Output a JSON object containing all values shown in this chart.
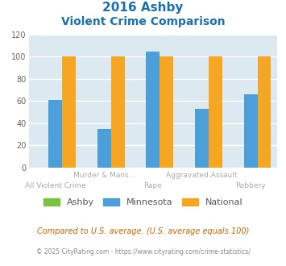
{
  "title_line1": "2016 Ashby",
  "title_line2": "Violent Crime Comparison",
  "title_color": "#1a6faf",
  "categories": [
    "All Violent Crime",
    "Murder & Mans...",
    "Rape",
    "Aggravated Assault",
    "Robbery"
  ],
  "ashby_values": [
    0,
    0,
    0,
    0,
    0
  ],
  "minnesota_values": [
    61,
    35,
    105,
    53,
    66
  ],
  "national_values": [
    100,
    100,
    100,
    100,
    100
  ],
  "ashby_color": "#7bc142",
  "minnesota_color": "#4d9fda",
  "national_color": "#f5a623",
  "ylim": [
    0,
    120
  ],
  "yticks": [
    0,
    20,
    40,
    60,
    80,
    100,
    120
  ],
  "bar_width": 0.28,
  "bg_color": "#dce9f0",
  "grid_color": "#ffffff",
  "legend_labels": [
    "Ashby",
    "Minnesota",
    "National"
  ],
  "footnote1": "Compared to U.S. average. (U.S. average equals 100)",
  "footnote2": "© 2025 CityRating.com - https://www.cityrating.com/crime-statistics/",
  "footnote1_color": "#cc6600",
  "footnote2_color": "#888888",
  "x_label_color": "#aaaaaa",
  "tick_label_color": "#666666",
  "title_fontsize1": 11,
  "title_fontsize2": 10
}
